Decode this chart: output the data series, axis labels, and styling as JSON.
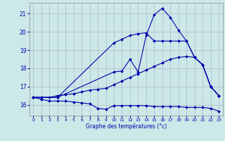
{
  "xlabel": "Graphe des températures (°c)",
  "background_color": "#cce8e8",
  "grid_color": "#aabbcc",
  "line_color": "#0000aa",
  "xlim": [
    -0.5,
    23.5
  ],
  "ylim": [
    15.4,
    21.6
  ],
  "yticks": [
    16,
    17,
    18,
    19,
    20,
    21
  ],
  "xticks": [
    0,
    1,
    2,
    3,
    4,
    5,
    6,
    7,
    8,
    9,
    10,
    11,
    12,
    13,
    14,
    15,
    16,
    17,
    18,
    19,
    20,
    21,
    22,
    23
  ],
  "series": [
    {
      "x": [
        0,
        1,
        2,
        3,
        4,
        5,
        6,
        7,
        8,
        9,
        10,
        11,
        12,
        13,
        14,
        15,
        16,
        17,
        18,
        19,
        20,
        21,
        22,
        23
      ],
      "y": [
        16.4,
        16.3,
        16.2,
        16.2,
        16.2,
        16.15,
        16.1,
        16.05,
        15.8,
        15.75,
        15.95,
        15.95,
        15.95,
        15.95,
        15.95,
        15.9,
        15.9,
        15.9,
        15.9,
        15.85,
        15.85,
        15.85,
        15.8,
        15.65
      ]
    },
    {
      "x": [
        0,
        1,
        2,
        3,
        4,
        5,
        6,
        7,
        8,
        9,
        10,
        11,
        12,
        13,
        14,
        15,
        16,
        17,
        18,
        19,
        20,
        21,
        22,
        23
      ],
      "y": [
        16.4,
        16.4,
        16.4,
        16.5,
        16.55,
        16.6,
        16.7,
        16.8,
        16.85,
        16.9,
        17.1,
        17.3,
        17.5,
        17.7,
        17.9,
        18.1,
        18.3,
        18.5,
        18.6,
        18.65,
        18.6,
        18.2,
        17.0,
        16.5
      ]
    },
    {
      "x": [
        0,
        3,
        10,
        11,
        12,
        13,
        14,
        15,
        16,
        17,
        18,
        19,
        20,
        21,
        22,
        23
      ],
      "y": [
        16.4,
        16.4,
        19.4,
        19.6,
        19.8,
        19.9,
        19.95,
        19.5,
        19.5,
        19.5,
        19.5,
        19.5,
        18.6,
        18.2,
        17.0,
        16.5
      ]
    },
    {
      "x": [
        0,
        3,
        10,
        11,
        12,
        13,
        14,
        15,
        16,
        17,
        18,
        19,
        20,
        21,
        22,
        23
      ],
      "y": [
        16.4,
        16.4,
        17.8,
        17.85,
        18.5,
        17.8,
        19.8,
        20.95,
        21.3,
        20.8,
        20.1,
        19.5,
        18.6,
        18.2,
        17.0,
        16.5
      ]
    }
  ]
}
